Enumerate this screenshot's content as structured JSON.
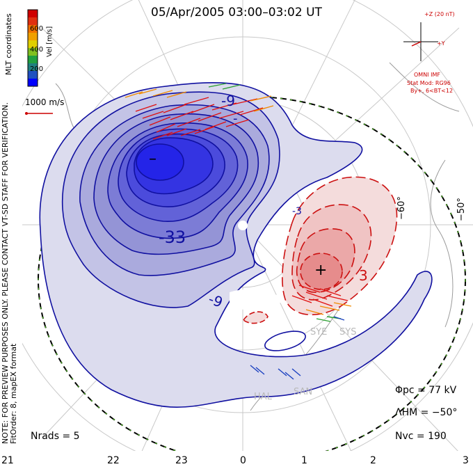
{
  "title": "05/Apr/2005 03:00–03:02 UT",
  "side_note_line1": "NOTE: FOR PREVIEW PURPOSES ONLY. PLEASE CONTACT VT-SD STAFF FOR VERIFICATION.",
  "side_note_line2": "FitOrder: 8, mapEX format",
  "colorbar": {
    "label": "Vel [m/s]",
    "coords_label": "MLT coordinates",
    "ticks": [
      "600",
      "400",
      "200"
    ],
    "colors": [
      "#d00000",
      "#e03010",
      "#f07000",
      "#f0a000",
      "#e0d000",
      "#80c020",
      "#20a040",
      "#208080",
      "#2050c0",
      "#0000ff"
    ]
  },
  "ref_vector": {
    "label": "1000 m/s",
    "color": "#cc0000"
  },
  "imf": {
    "z_label": "+Z (20 nT)",
    "y_label": "+Y",
    "source": "OMNI IMF",
    "model": "Stat Mod: RG96",
    "condition": "By+, 6<BT<12",
    "color": "#cc0000"
  },
  "contours": {
    "negative_color": "#1010a0",
    "positive_color": "#cc1010",
    "labels": [
      "-9",
      "-33",
      "-9",
      "-3",
      "3",
      "-"
    ]
  },
  "lat_labels": [
    "−60°",
    "−50°"
  ],
  "radars": [
    "SYE",
    "SYS",
    "HAL",
    "SAN"
  ],
  "stats": {
    "phi_pc": "Φpc  =  77 kV",
    "lambda_hm": "ΛHM  =  −50°",
    "n_vc": "Nvc  =  190",
    "n_rads": "Nrads  =  5"
  },
  "mlt_ticks": [
    "21",
    "22",
    "23",
    "0",
    "1",
    "2",
    "3"
  ],
  "markers": {
    "min": "–",
    "max": "+"
  }
}
